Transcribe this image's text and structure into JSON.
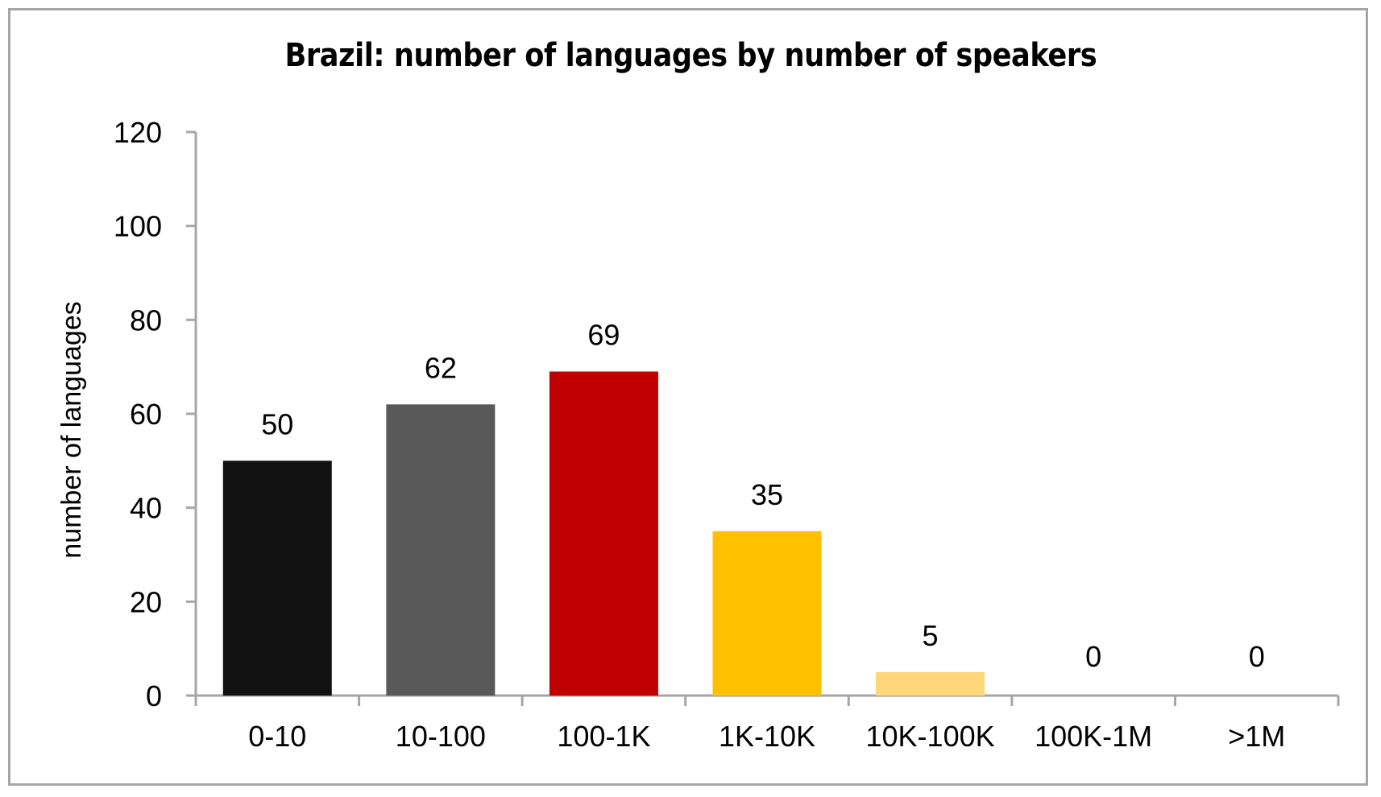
{
  "chart_data": {
    "type": "bar",
    "title": "Brazil: number of languages by number of speakers",
    "xlabel": "",
    "ylabel": "number of languages",
    "categories": [
      "0-10",
      "10-100",
      "100-1K",
      "1K-10K",
      "10K-100K",
      "100K-1M",
      ">1M"
    ],
    "values": [
      50,
      62,
      69,
      35,
      5,
      0,
      0
    ],
    "colors": [
      "#111111",
      "#595959",
      "#c00000",
      "#ffc000",
      "#ffd67a",
      "#ffffff",
      "#ffffff"
    ],
    "ylim": [
      0,
      120
    ],
    "yticks": [
      0,
      20,
      40,
      60,
      80,
      100,
      120
    ],
    "grid": false,
    "legend": "none",
    "data_labels": true
  }
}
